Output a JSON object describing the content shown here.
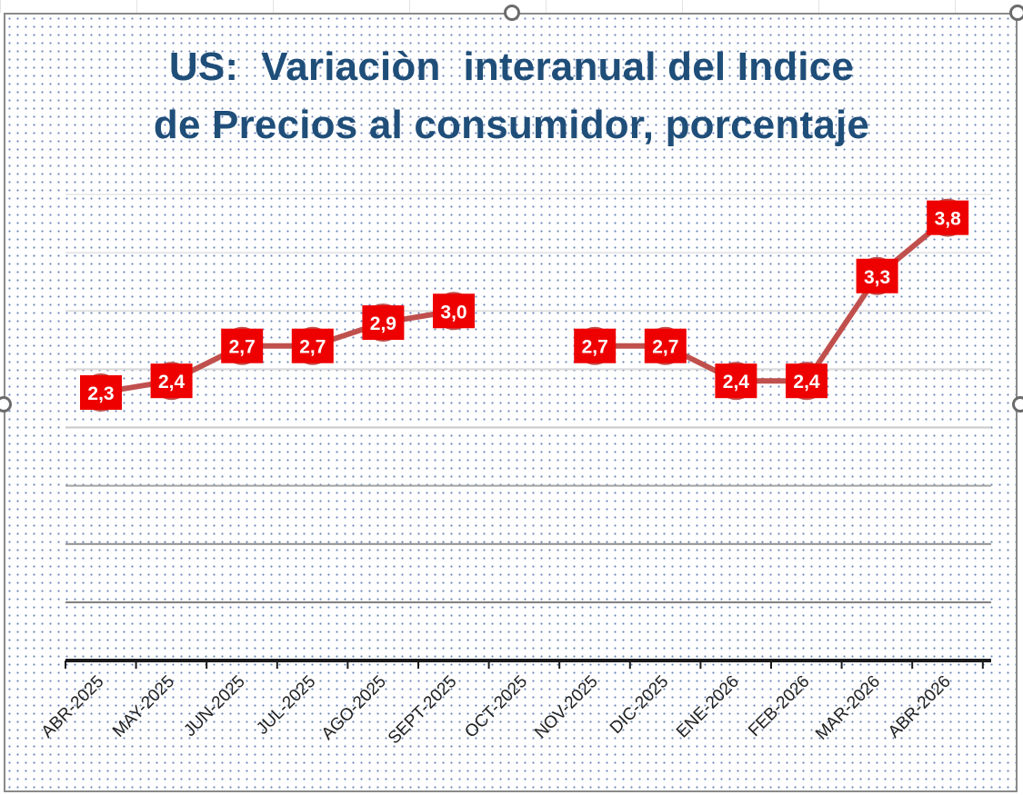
{
  "chart_data": {
    "type": "line",
    "title_lines": [
      "US:  Variaciòn  interanual del Indice",
      "de Precios al consumidor, porcentaje"
    ],
    "xlabel": "",
    "ylabel": "",
    "categories": [
      "ABR-2025",
      "MAY-2025",
      "JUN-2025",
      "JUL-2025",
      "AGO-2025",
      "SEPT-2025",
      "OCT-2025",
      "NOV-2025",
      "DIC-2025",
      "ENE-2026",
      "FEB-2026",
      "MAR-2026",
      "ABR-2026"
    ],
    "series": [
      {
        "values": [
          2.3,
          2.4,
          2.7,
          2.7,
          2.9,
          3.0,
          null,
          2.7,
          2.7,
          2.4,
          2.4,
          3.3,
          3.8
        ],
        "labels": [
          "2,3",
          "2,4",
          "2,7",
          "2,7",
          "2,9",
          "3,0",
          null,
          "2,7",
          "2,7",
          "2,4",
          "2,4",
          "3,3",
          "3,8"
        ]
      }
    ],
    "ylim": [
      0,
      4.0
    ],
    "grid": true,
    "legend": "none",
    "colors": {
      "line": "#c0504d",
      "label_bg": "#ee0000",
      "label_text": "#ffffff",
      "title": "#1f4e79",
      "dots": "#6f86b8"
    }
  }
}
